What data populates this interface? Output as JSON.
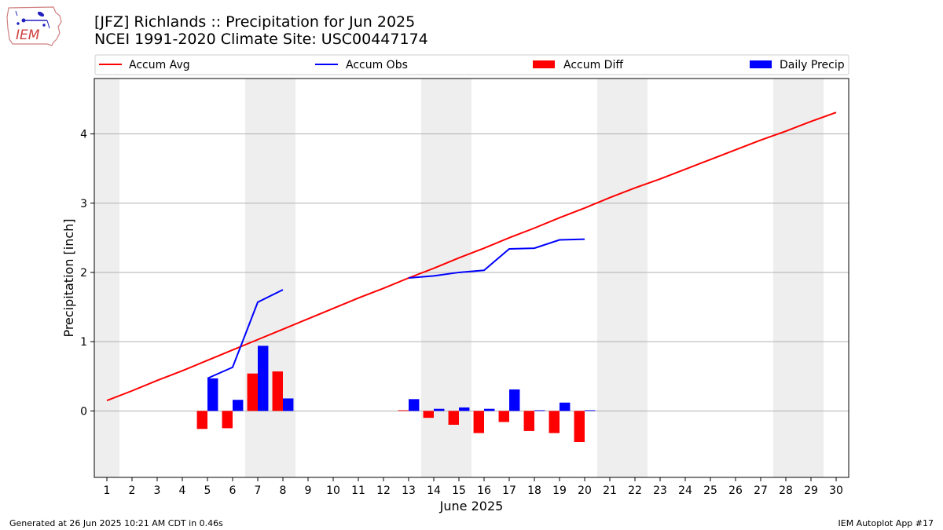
{
  "logo": {
    "text": "IEM"
  },
  "title": {
    "line1": "[JFZ] Richlands :: Precipitation for Jun 2025",
    "line2": "NCEI 1991-2020 Climate Site: USC00447174"
  },
  "footer": {
    "left": "Generated at 26 Jun 2025 10:21 AM CDT in 0.46s",
    "right": "IEM Autoplot App #17"
  },
  "colors": {
    "accum_avg": "#ff0000",
    "accum_obs": "#0000ff",
    "accum_diff": "#ff0000",
    "daily_precip": "#0000ff",
    "weekend_shade": "#eeeeee",
    "grid": "#b0b0b0"
  },
  "chart_data": {
    "type": "bar",
    "xlabel": "June 2025",
    "ylabel": "Precipitation [inch]",
    "x": [
      1,
      2,
      3,
      4,
      5,
      6,
      7,
      8,
      9,
      10,
      11,
      12,
      13,
      14,
      15,
      16,
      17,
      18,
      19,
      20,
      21,
      22,
      23,
      24,
      25,
      26,
      27,
      28,
      29,
      30
    ],
    "xlim": [
      0.5,
      30.5
    ],
    "ylim": [
      -0.96,
      4.8
    ],
    "yticks": [
      0,
      1,
      2,
      3,
      4
    ],
    "grid": "horizontal",
    "legend": {
      "placement": "top",
      "entries": [
        "Accum Avg",
        "Accum Obs",
        "Accum Diff",
        "Daily Precip"
      ]
    },
    "weekend_shading": [
      [
        0.5,
        1.5
      ],
      [
        6.5,
        8.5
      ],
      [
        13.5,
        15.5
      ],
      [
        20.5,
        22.5
      ],
      [
        27.5,
        29.5
      ]
    ],
    "series": [
      {
        "name": "Accum Avg",
        "kind": "line",
        "x": [
          1,
          2,
          3,
          4,
          5,
          6,
          7,
          8,
          9,
          10,
          11,
          12,
          13,
          14,
          15,
          16,
          17,
          18,
          19,
          20,
          21,
          22,
          23,
          24,
          25,
          26,
          27,
          28,
          29,
          30
        ],
        "values": [
          0.15,
          0.29,
          0.44,
          0.58,
          0.73,
          0.88,
          1.03,
          1.18,
          1.33,
          1.48,
          1.63,
          1.77,
          1.92,
          2.06,
          2.21,
          2.35,
          2.5,
          2.64,
          2.79,
          2.93,
          3.08,
          3.22,
          3.35,
          3.49,
          3.63,
          3.77,
          3.91,
          4.04,
          4.18,
          4.31
        ]
      },
      {
        "name": "Accum Obs",
        "kind": "line",
        "segments": [
          {
            "x": [
              5,
              6,
              7,
              8
            ],
            "values": [
              0.47,
              0.63,
              1.57,
              1.75
            ]
          },
          {
            "x": [
              13,
              14,
              15,
              16,
              17,
              18,
              19,
              20
            ],
            "values": [
              1.92,
              1.95,
              2.0,
              2.03,
              2.34,
              2.35,
              2.47,
              2.48
            ]
          }
        ]
      },
      {
        "name": "Accum Diff",
        "kind": "bar",
        "x": [
          5,
          6,
          7,
          8,
          13,
          14,
          15,
          16,
          17,
          18,
          19,
          20
        ],
        "values": [
          -0.26,
          -0.25,
          0.54,
          0.57,
          0.01,
          -0.1,
          -0.2,
          -0.32,
          -0.16,
          -0.29,
          -0.32,
          -0.45
        ]
      },
      {
        "name": "Daily Precip",
        "kind": "bar",
        "x": [
          5,
          6,
          7,
          8,
          13,
          14,
          15,
          16,
          17,
          18,
          19,
          20
        ],
        "values": [
          0.47,
          0.16,
          0.94,
          0.18,
          0.17,
          0.03,
          0.05,
          0.03,
          0.31,
          0.01,
          0.12,
          0.01
        ]
      }
    ]
  }
}
